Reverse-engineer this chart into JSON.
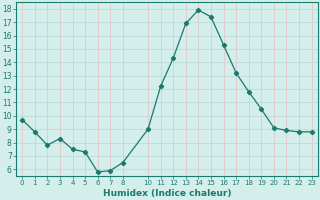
{
  "x": [
    0,
    1,
    2,
    3,
    4,
    5,
    6,
    7,
    8,
    10,
    11,
    12,
    13,
    14,
    15,
    16,
    17,
    18,
    19,
    20,
    21,
    22,
    23
  ],
  "y": [
    9.7,
    8.8,
    7.8,
    8.3,
    7.5,
    7.3,
    5.8,
    5.9,
    6.5,
    9.0,
    12.2,
    14.3,
    16.9,
    17.9,
    17.4,
    15.3,
    13.2,
    11.8,
    10.5,
    9.1,
    8.9,
    8.8,
    8.8
  ],
  "xlim": [
    -0.5,
    23.5
  ],
  "ylim": [
    5.5,
    18.5
  ],
  "yticks": [
    6,
    7,
    8,
    9,
    10,
    11,
    12,
    13,
    14,
    15,
    16,
    17,
    18
  ],
  "xticks": [
    0,
    1,
    2,
    3,
    4,
    5,
    6,
    7,
    8,
    10,
    11,
    12,
    13,
    14,
    15,
    16,
    17,
    18,
    19,
    20,
    21,
    22,
    23
  ],
  "xlabel": "Humidex (Indice chaleur)",
  "line_color": "#1a7a6e",
  "marker": "D",
  "marker_size": 2.2,
  "bg_color": "#d4eeeb",
  "grid_color_h": "#b8d8d4",
  "grid_color_v": "#e8c0c0"
}
